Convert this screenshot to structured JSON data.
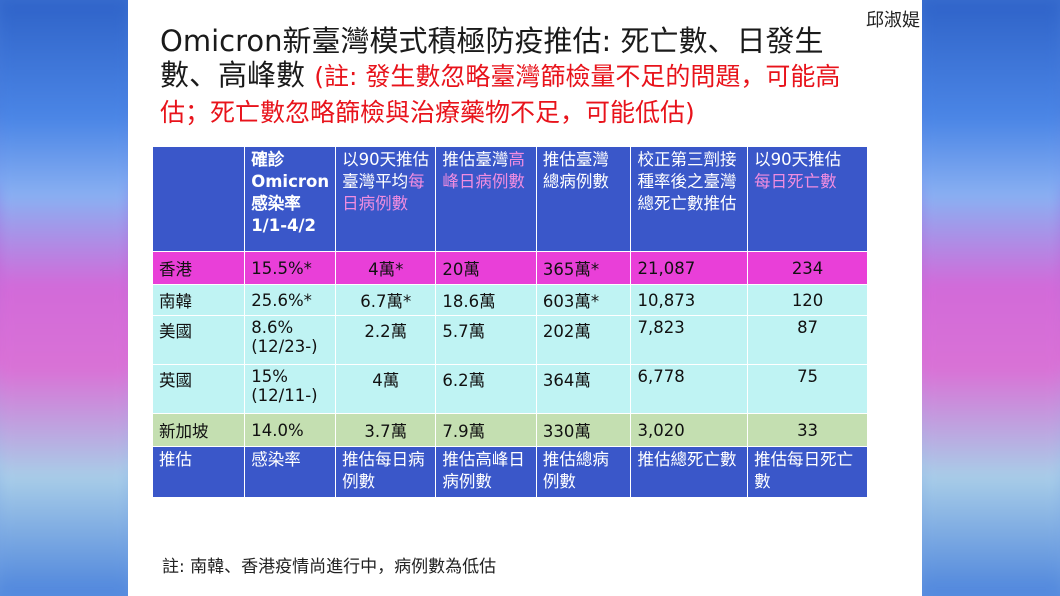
{
  "author": "邱淑媞",
  "title": {
    "main": "Omicron新臺灣模式積極防疫推估: 死亡數、日發生數、高峰數",
    "note": "(註: 發生數忽略臺灣篩檢量不足的問題，可能高估；死亡數忽略篩檢與治療藥物不足，可能低估)"
  },
  "table": {
    "headers": {
      "h1_a": "確診",
      "h1_b": "Omicron",
      "h1_c": "感染率",
      "h1_d": "1/1-4/2",
      "h2_a": "以90天推估臺灣平均",
      "h2_b": "每日病例數",
      "h3_a": "推估臺灣",
      "h3_b": "高峰日病例數",
      "h4": "推估臺灣總病例數",
      "h5": "校正第三劑接種率後之臺灣總死亡數推估",
      "h6_a": "以90天推估",
      "h6_b": "每日死亡數"
    },
    "rows": [
      {
        "name": "香港",
        "rate": "15.5%*",
        "daily": "4萬*",
        "peak": "20萬",
        "total": "365萬*",
        "deaths": "21,087",
        "daily_deaths": "234"
      },
      {
        "name": "南韓",
        "rate": "25.6%*",
        "daily": "6.7萬*",
        "peak": "18.6萬",
        "total": "603萬*",
        "deaths": "10,873",
        "daily_deaths": "120"
      },
      {
        "name": "美國",
        "rate": "8.6%",
        "rate_sub": "(12/23-)",
        "daily": "2.2萬",
        "peak": "5.7萬",
        "total": "202萬",
        "deaths": "7,823",
        "daily_deaths": "87"
      },
      {
        "name": "英國",
        "rate": "15%",
        "rate_sub": "(12/11-)",
        "daily": "4萬",
        "peak": "6.2萬",
        "total": "364萬",
        "deaths": "6,778",
        "daily_deaths": "75"
      },
      {
        "name": "新加坡",
        "rate": "14.0%",
        "daily": "3.7萬",
        "peak": "7.9萬",
        "total": "330萬",
        "deaths": "3,020",
        "daily_deaths": "33"
      }
    ],
    "footer": {
      "name": "推估",
      "rate": "感染率",
      "daily": "推估每日病例數",
      "peak": "推估高峰日病例數",
      "total": "推估總病例數",
      "deaths": "推估總死亡數",
      "daily_deaths": "推估每日死亡數"
    }
  },
  "footnote": "註: 南韓、香港疫情尚進行中，病例數為低估",
  "colors": {
    "header_bg": "#3a57c9",
    "hk_row": "#e93fd8",
    "cyan_row": "#bff3f3",
    "sg_row": "#c4dfb1",
    "note_red": "#e8131b",
    "header_pink": "#f08de0"
  }
}
